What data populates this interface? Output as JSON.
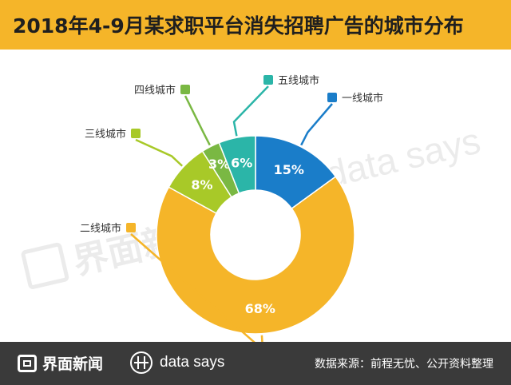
{
  "header": {
    "title": "2018年4-9月某求职平台消失招聘广告的城市分布"
  },
  "chart_data": {
    "type": "pie",
    "title": "2018年4-9月某求职平台消失招聘广告的城市分布",
    "donut": true,
    "categories": [
      "一线城市",
      "二线城市",
      "三线城市",
      "四线城市",
      "五线城市"
    ],
    "values": [
      15,
      68,
      8,
      3,
      6
    ],
    "value_labels": [
      "15%",
      "68%",
      "8%",
      "3%",
      "6%"
    ],
    "order_clockwise_from_top": [
      "一线城市",
      "二线城市",
      "三线城市",
      "四线城市",
      "五线城市"
    ],
    "colors": {
      "一线城市": "#1a7dc9",
      "二线城市": "#f5b529",
      "三线城市": "#a8c928",
      "四线城市": "#7ab843",
      "五线城市": "#2bb5a8"
    }
  },
  "watermarks": {
    "jiemian": "界面新闻",
    "datasays": "data says"
  },
  "footer": {
    "brand": "界面新闻",
    "product": "data says",
    "source": "数据来源：前程无忧、公开资料整理"
  },
  "theme": {
    "title_bar": "#f5b529",
    "footer_bg": "#3a3a3a"
  }
}
